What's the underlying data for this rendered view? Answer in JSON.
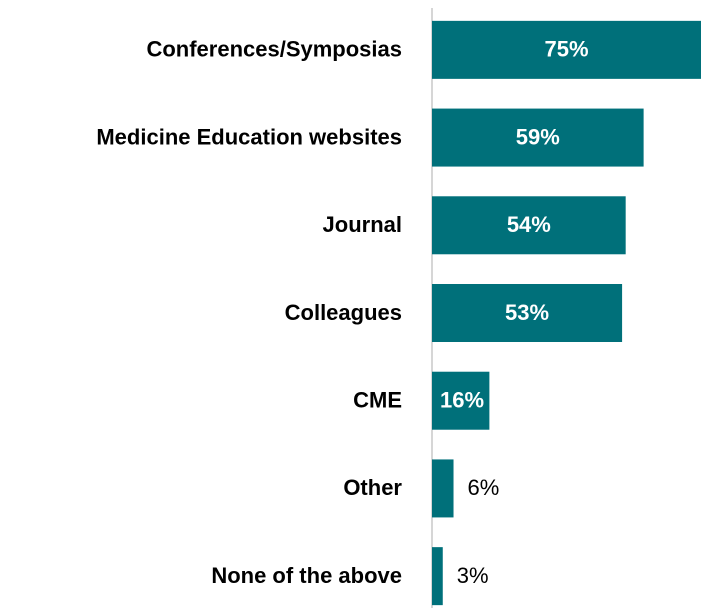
{
  "chart_data": {
    "type": "bar",
    "orientation": "horizontal",
    "categories": [
      "Conferences/Symposias",
      "Medicine Education websites",
      "Journal",
      "Colleagues",
      "CME",
      "Other",
      "None of the above"
    ],
    "values": [
      75,
      59,
      54,
      53,
      16,
      6,
      3
    ],
    "value_labels": [
      "75%",
      "59%",
      "54%",
      "53%",
      "16%",
      "6%",
      "3%"
    ],
    "color": "#00707a",
    "xlim": [
      0,
      75
    ]
  }
}
